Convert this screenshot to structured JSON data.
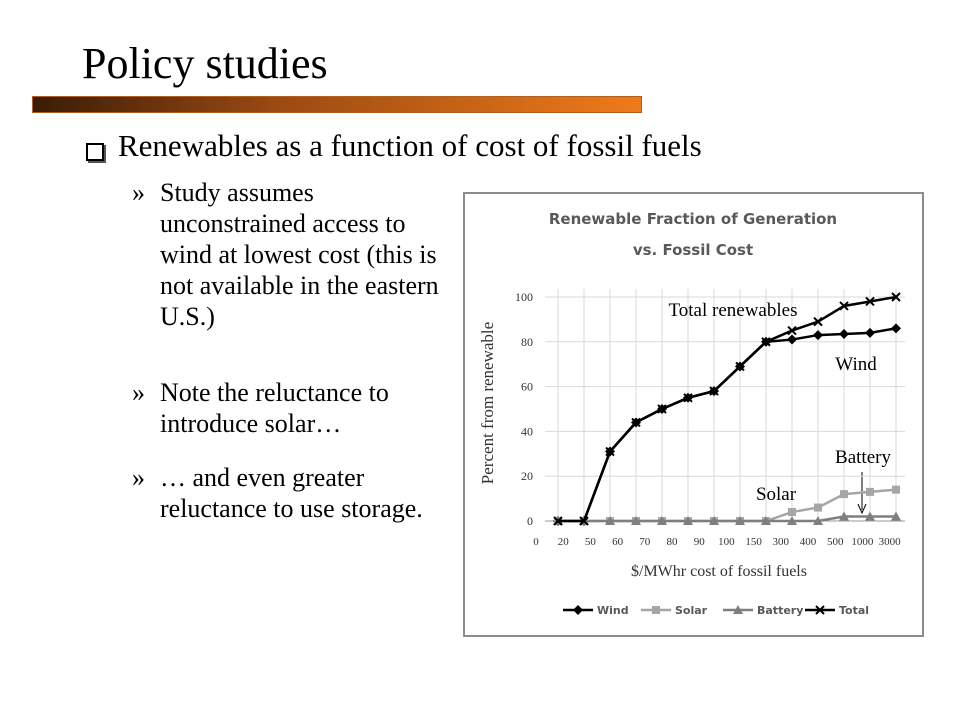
{
  "slide": {
    "title": "Policy studies",
    "bullet": "Renewables as a function of cost of fossil fuels",
    "subbullets": [
      "Study assumes unconstrained access to wind at lowest cost (this is not available in the eastern U.S.)",
      "Note the reluctance to introduce solar…",
      "… and even greater reluctance to use storage."
    ]
  },
  "chart_data": {
    "type": "line",
    "title": [
      "Renewable Fraction of Generation",
      "vs. Fossil Cost"
    ],
    "xlabel": "$/MWhr cost of fossil fuels",
    "ylabel": "Percent from renewable",
    "categories": [
      "0",
      "20",
      "50",
      "60",
      "70",
      "80",
      "90",
      "100",
      "150",
      "300",
      "400",
      "500",
      "1000",
      "3000"
    ],
    "series": [
      {
        "name": "Wind",
        "color": "#000000",
        "marker": "diamond",
        "values": [
          0,
          0,
          31,
          44,
          50,
          55,
          58,
          69,
          80,
          81,
          83,
          83.5,
          84,
          86
        ]
      },
      {
        "name": "Solar",
        "color": "#a6a6a6",
        "marker": "square",
        "values": [
          0,
          0,
          0,
          0,
          0,
          0,
          0,
          0,
          0,
          4,
          6,
          12,
          13,
          14
        ]
      },
      {
        "name": "Battery",
        "color": "#7f7f7f",
        "marker": "triangle",
        "values": [
          0,
          0,
          0,
          0,
          0,
          0,
          0,
          0,
          0,
          0,
          0,
          2,
          2,
          2
        ]
      },
      {
        "name": "Total",
        "color": "#000000",
        "marker": "x",
        "values": [
          0,
          0,
          31,
          44,
          50,
          55,
          58,
          69,
          80,
          85,
          89,
          96,
          98,
          100
        ]
      }
    ],
    "ylim": [
      0,
      100
    ],
    "yticks": [
      0,
      20,
      40,
      60,
      80,
      100
    ],
    "grid": true,
    "annotations": [
      "Total renewables",
      "Wind",
      "Battery",
      "Solar"
    ],
    "legend": "bottom"
  }
}
